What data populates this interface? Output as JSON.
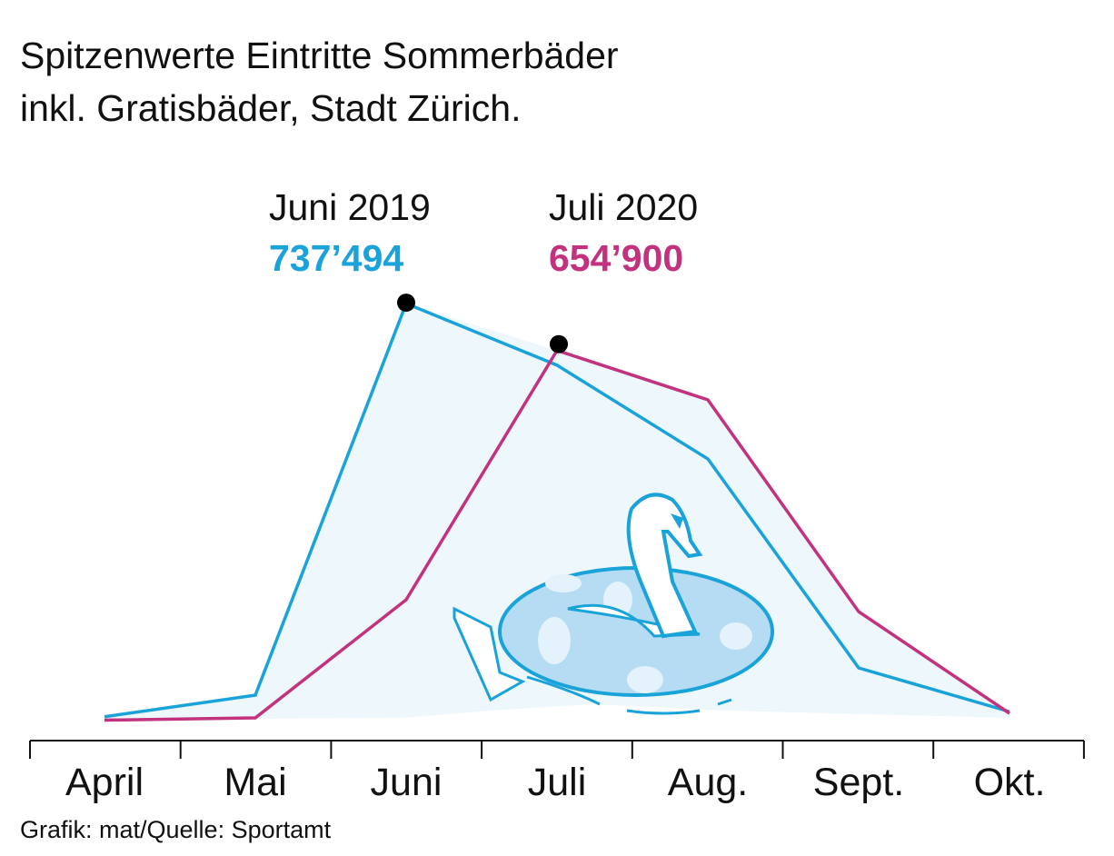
{
  "title_line1": "Spitzenwerte Eintritte Sommerbäder",
  "title_line2": "inkl. Gratisbäder, Stadt Zürich.",
  "footer": "Grafik: mat/Quelle: Sportamt",
  "colors": {
    "s2019": "#1aa3d9",
    "s2020": "#c2327f",
    "fill": "#eef7fc"
  },
  "chart_data": {
    "type": "line",
    "title": "Spitzenwerte Eintritte Sommerbäder inkl. Gratisbäder, Stadt Zürich.",
    "categories": [
      "April",
      "Mai",
      "Juni",
      "Juli",
      "Aug.",
      "Sept.",
      "Okt."
    ],
    "series": [
      {
        "name": "2019",
        "values": [
          10000,
          48000,
          737494,
          629000,
          464000,
          96000,
          19000
        ]
      },
      {
        "name": "2020",
        "values": [
          4000,
          8000,
          216000,
          654900,
          568000,
          195000,
          16000
        ]
      }
    ],
    "annotations": [
      {
        "label": "Juni 2019",
        "value": "737’494",
        "series": "2019",
        "category": "Juni"
      },
      {
        "label": "Juli 2020",
        "value": "654’900",
        "series": "2020",
        "category": "Juli"
      }
    ],
    "ylim": [
      0,
      760000
    ],
    "xlabel": "",
    "ylabel": "",
    "grid": false,
    "legend": "none"
  }
}
